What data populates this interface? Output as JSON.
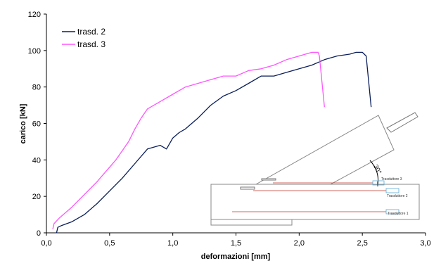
{
  "chart_data": {
    "type": "line",
    "xlabel": "deformazioni [mm]",
    "ylabel": "carico [kN]",
    "xlim": [
      0,
      3.0
    ],
    "ylim": [
      0,
      120
    ],
    "xticks": [
      "0,0",
      "0,5",
      "1,0",
      "1,5",
      "2,0",
      "2,5",
      "3,0"
    ],
    "yticks": [
      "0",
      "20",
      "40",
      "60",
      "80",
      "100",
      "120"
    ],
    "grid": false,
    "legend": "top-left",
    "series": [
      {
        "name": "trasd. 2",
        "color": "#0a1e5a",
        "x": [
          0.08,
          0.09,
          0.12,
          0.2,
          0.3,
          0.4,
          0.5,
          0.6,
          0.7,
          0.8,
          0.9,
          0.95,
          1.0,
          1.05,
          1.1,
          1.2,
          1.3,
          1.4,
          1.5,
          1.6,
          1.7,
          1.8,
          1.9,
          2.0,
          2.1,
          2.2,
          2.3,
          2.4,
          2.45,
          2.5,
          2.53,
          2.57
        ],
        "y": [
          0,
          3,
          4,
          6,
          10,
          16,
          23,
          30,
          38,
          46,
          48,
          46,
          52,
          55,
          57,
          63,
          70,
          75,
          78,
          82,
          86,
          86,
          88,
          90,
          92,
          95,
          97,
          98,
          99,
          99,
          97,
          69
        ]
      },
      {
        "name": "trasd. 3",
        "color": "#ff55ff",
        "x": [
          0.05,
          0.06,
          0.1,
          0.2,
          0.3,
          0.4,
          0.5,
          0.55,
          0.6,
          0.65,
          0.7,
          0.75,
          0.8,
          0.9,
          1.0,
          1.1,
          1.2,
          1.3,
          1.4,
          1.5,
          1.6,
          1.7,
          1.8,
          1.9,
          2.0,
          2.05,
          2.1,
          2.15,
          2.16,
          2.2
        ],
        "y": [
          2,
          5,
          8,
          14,
          21,
          28,
          36,
          40,
          45,
          50,
          57,
          63,
          68,
          72,
          76,
          80,
          82,
          84,
          86,
          86,
          89,
          90,
          92,
          95,
          97,
          98,
          99,
          99,
          97,
          69
        ]
      }
    ],
    "inset_labels": {
      "angle": "30°",
      "sensor_3": "Trasduttore 3",
      "sensor_2": "Trasduttore 2",
      "sensor_1": "Trasduttore 1"
    }
  }
}
